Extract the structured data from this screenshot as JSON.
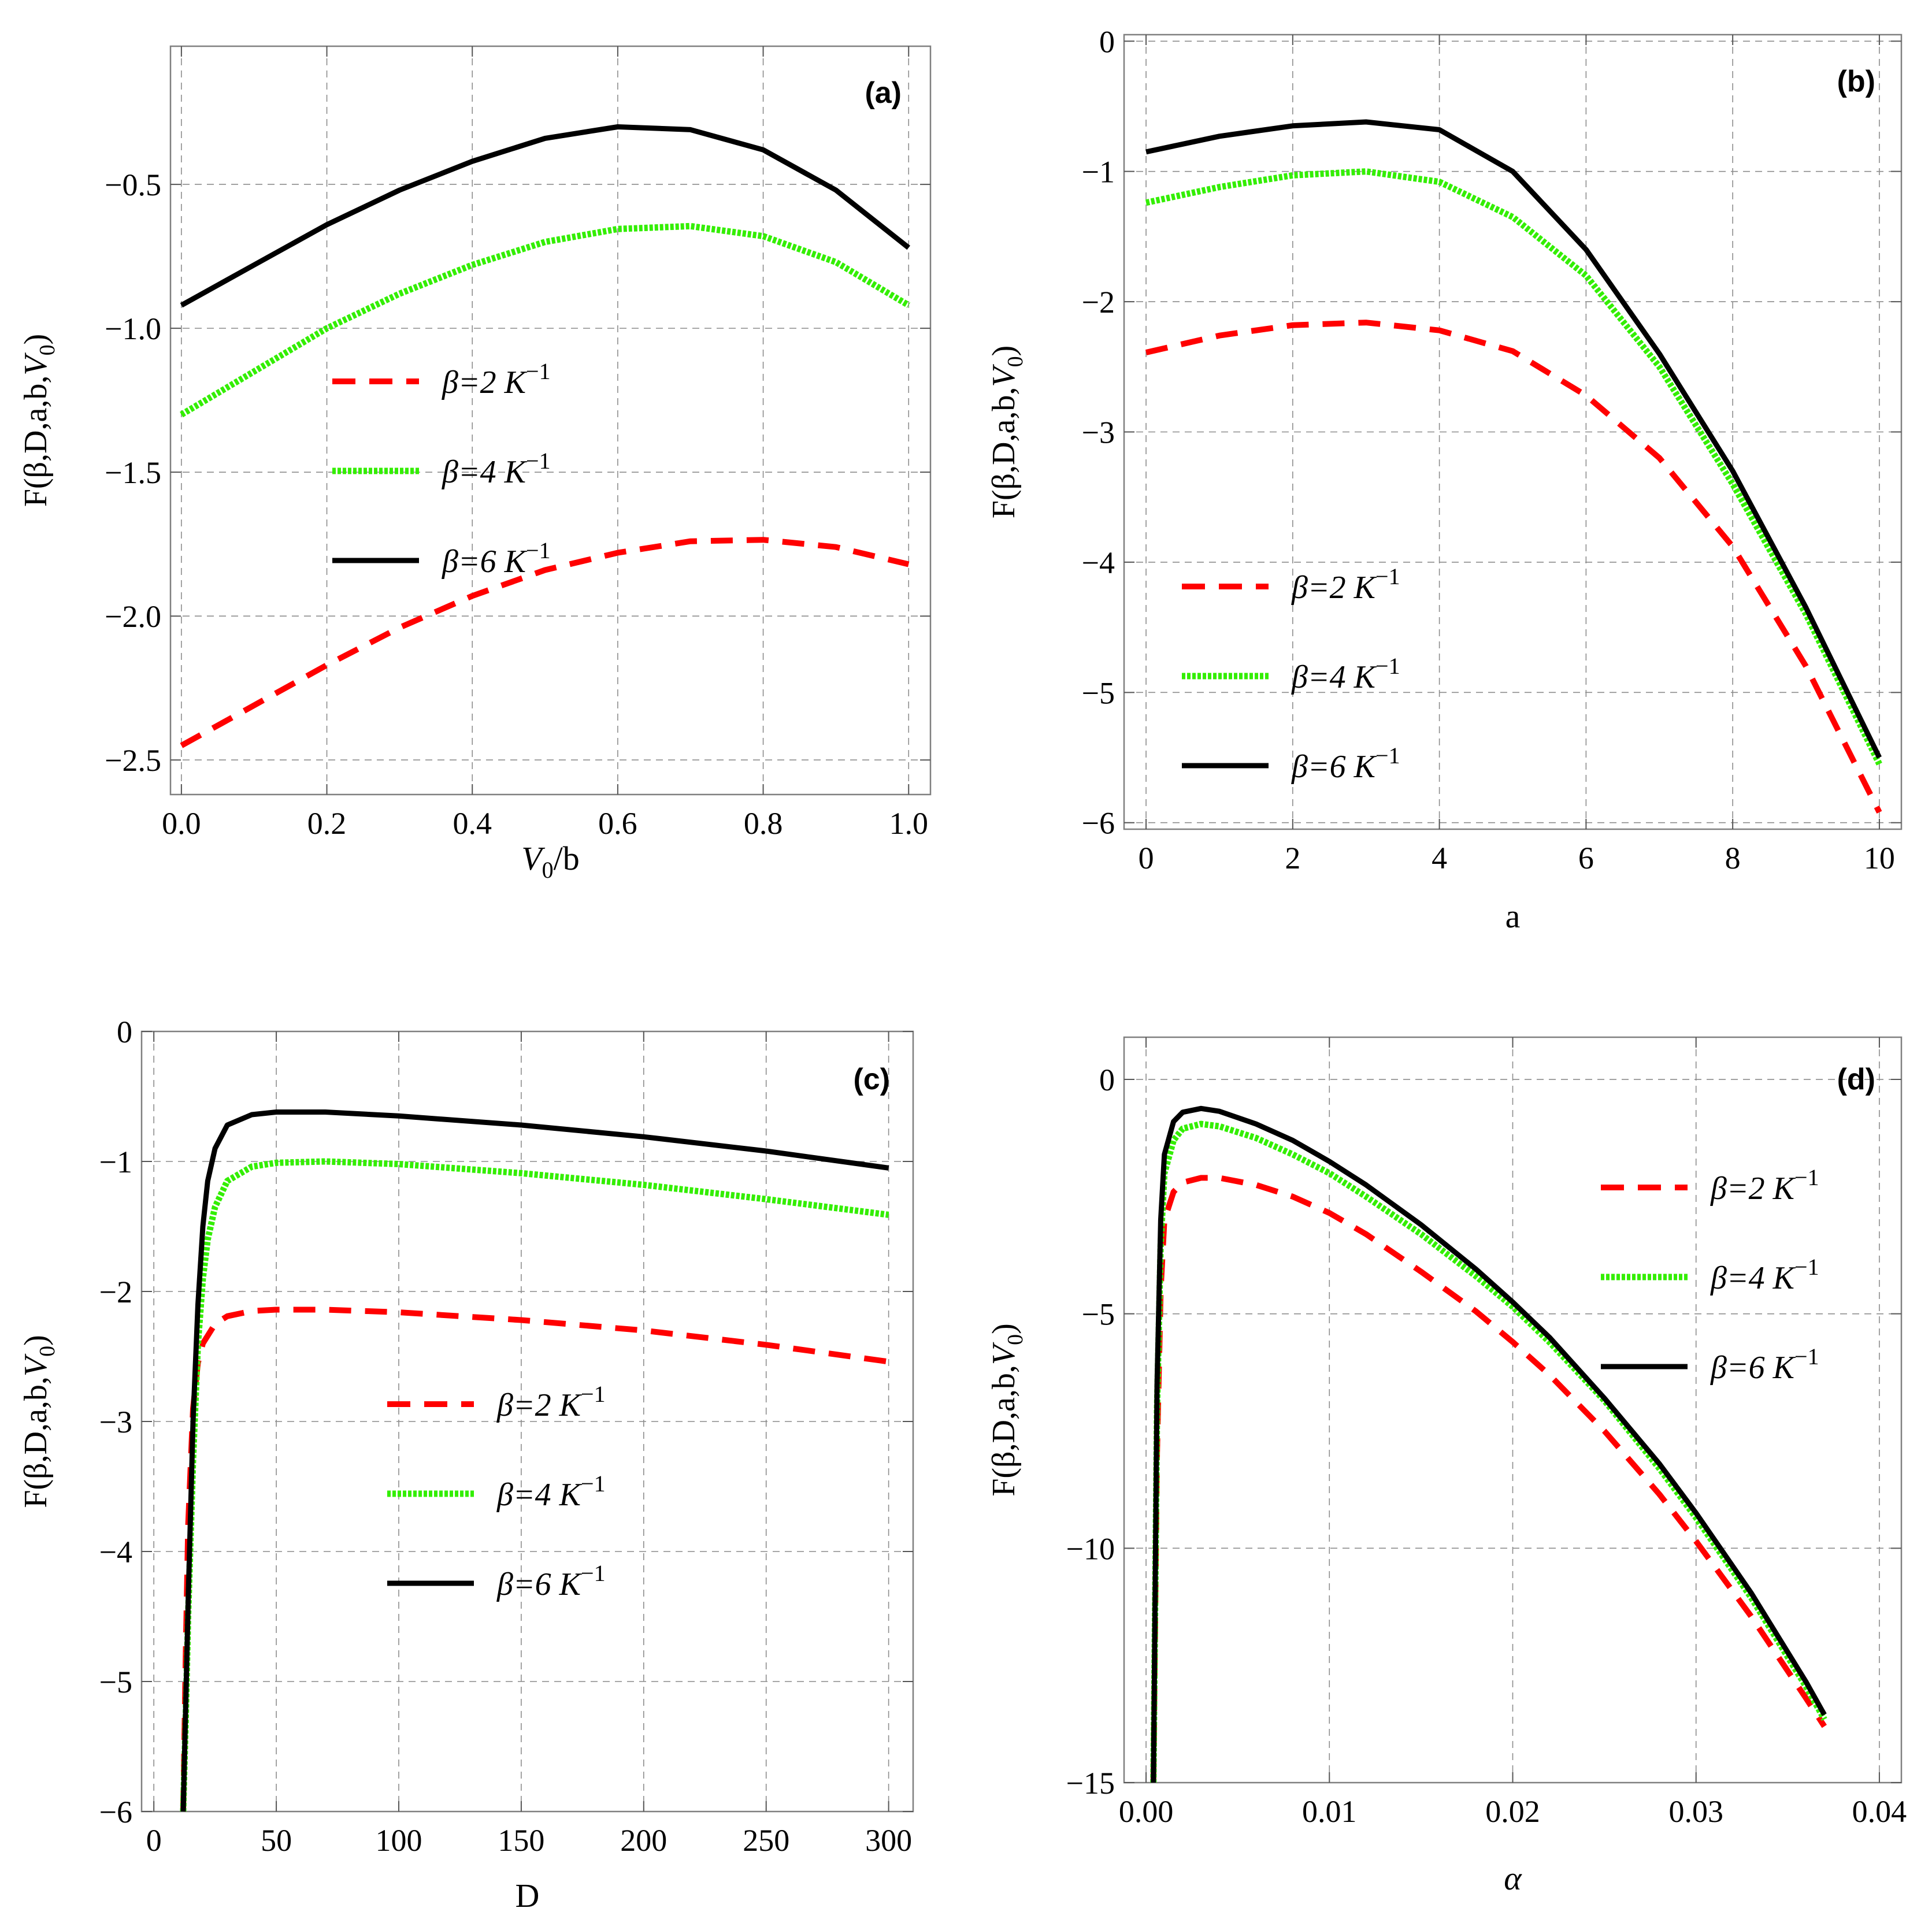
{
  "chart_data": [
    {
      "panel": "(a)",
      "type": "line",
      "xlabel": "V0/b",
      "ylabel": "F(β,D,a,b,V0)",
      "xlim": [
        -0.015,
        1.03
      ],
      "ylim": [
        -2.62,
        -0.02
      ],
      "xticks": [
        0.0,
        0.2,
        0.4,
        0.6,
        0.8,
        1.0
      ],
      "xtick_labels": [
        "0.0",
        "0.2",
        "0.4",
        "0.6",
        "0.8",
        "1.0"
      ],
      "yticks": [
        -2.5,
        -2.0,
        -1.5,
        -1.0,
        -0.5
      ],
      "ytick_labels": [
        "−2.5",
        "−2.0",
        "−1.5",
        "−1.0",
        "−0.5"
      ],
      "legend": {
        "placement": "center-left"
      },
      "series": [
        {
          "name": "β=2 K⁻¹",
          "color": "#ff0000",
          "style": "dashed",
          "x": [
            0.0,
            0.1,
            0.2,
            0.3,
            0.4,
            0.5,
            0.6,
            0.7,
            0.8,
            0.9,
            1.0
          ],
          "y": [
            -2.45,
            -2.31,
            -2.17,
            -2.04,
            -1.93,
            -1.84,
            -1.78,
            -1.74,
            -1.735,
            -1.76,
            -1.82
          ]
        },
        {
          "name": "β=4 K⁻¹",
          "color": "#33ee00",
          "style": "dotted",
          "x": [
            0.0,
            0.1,
            0.2,
            0.3,
            0.4,
            0.5,
            0.6,
            0.7,
            0.8,
            0.9,
            1.0
          ],
          "y": [
            -1.3,
            -1.15,
            -1.0,
            -0.88,
            -0.78,
            -0.7,
            -0.655,
            -0.645,
            -0.68,
            -0.77,
            -0.92
          ]
        },
        {
          "name": "β=6 K⁻¹",
          "color": "#000000",
          "style": "solid",
          "x": [
            0.0,
            0.1,
            0.2,
            0.3,
            0.4,
            0.5,
            0.6,
            0.7,
            0.8,
            0.9,
            1.0
          ],
          "y": [
            -0.92,
            -0.78,
            -0.64,
            -0.52,
            -0.42,
            -0.34,
            -0.3,
            -0.31,
            -0.38,
            -0.52,
            -0.72
          ]
        }
      ]
    },
    {
      "panel": "(b)",
      "type": "line",
      "xlabel": "a",
      "ylabel": "F(β,D,a,b,V0)",
      "xlim": [
        -0.3,
        10.3
      ],
      "ylim": [
        -6.05,
        0.05
      ],
      "xticks": [
        0,
        2,
        4,
        6,
        8,
        10
      ],
      "xtick_labels": [
        "0",
        "2",
        "4",
        "6",
        "8",
        "10"
      ],
      "yticks": [
        0,
        -1,
        -2,
        -3,
        -4,
        -5,
        -6
      ],
      "ytick_labels": [
        "0",
        "−1",
        "−2",
        "−3",
        "−4",
        "−5",
        "−6"
      ],
      "legend": {
        "placement": "bottom-left"
      },
      "series": [
        {
          "name": "β=2 K⁻¹",
          "color": "#ff0000",
          "style": "dashed",
          "x": [
            0,
            1,
            2,
            3,
            4,
            5,
            6,
            7,
            8,
            9,
            10
          ],
          "y": [
            -2.39,
            -2.26,
            -2.18,
            -2.16,
            -2.22,
            -2.38,
            -2.72,
            -3.2,
            -3.88,
            -4.8,
            -5.92
          ]
        },
        {
          "name": "β=4 K⁻¹",
          "color": "#33ee00",
          "style": "dotted",
          "x": [
            0,
            1,
            2,
            3,
            4,
            5,
            6,
            7,
            8,
            9,
            10
          ],
          "y": [
            -1.24,
            -1.12,
            -1.03,
            -1.0,
            -1.08,
            -1.35,
            -1.8,
            -2.5,
            -3.4,
            -4.4,
            -5.55
          ]
        },
        {
          "name": "β=6 K⁻¹",
          "color": "#000000",
          "style": "solid",
          "x": [
            0,
            1,
            2,
            3,
            4,
            5,
            6,
            7,
            8,
            9,
            10
          ],
          "y": [
            -0.85,
            -0.73,
            -0.65,
            -0.62,
            -0.68,
            -1.0,
            -1.6,
            -2.4,
            -3.3,
            -4.35,
            -5.5
          ]
        }
      ]
    },
    {
      "panel": "(c)",
      "type": "line",
      "xlabel": "D",
      "ylabel": "F(β,D,a,b,V0)",
      "xlim": [
        -5,
        310
      ],
      "ylim": [
        -6.0,
        0.0
      ],
      "xticks": [
        0,
        50,
        100,
        150,
        200,
        250,
        300
      ],
      "xtick_labels": [
        "0",
        "50",
        "100",
        "150",
        "200",
        "250",
        "300"
      ],
      "yticks": [
        0,
        -1,
        -2,
        -3,
        -4,
        -5,
        -6
      ],
      "ytick_labels": [
        "0",
        "−1",
        "−2",
        "−3",
        "−4",
        "−5",
        "−6"
      ],
      "legend": {
        "placement": "bottom-center"
      },
      "series": [
        {
          "name": "β=2 K⁻¹",
          "color": "#ff0000",
          "style": "dashed",
          "x": [
            12,
            13,
            14,
            16,
            18,
            20,
            25,
            30,
            40,
            50,
            70,
            100,
            150,
            200,
            250,
            300
          ],
          "y": [
            -6.0,
            -4.8,
            -3.8,
            -2.9,
            -2.55,
            -2.4,
            -2.25,
            -2.19,
            -2.15,
            -2.14,
            -2.14,
            -2.16,
            -2.22,
            -2.3,
            -2.41,
            -2.54
          ]
        },
        {
          "name": "β=4 K⁻¹",
          "color": "#33ee00",
          "style": "dotted",
          "x": [
            12,
            13,
            14,
            16,
            18,
            20,
            22,
            25,
            30,
            40,
            50,
            70,
            100,
            150,
            200,
            250,
            300
          ],
          "y": [
            -6.0,
            -5.3,
            -4.5,
            -3.3,
            -2.4,
            -1.9,
            -1.6,
            -1.35,
            -1.15,
            -1.04,
            -1.01,
            -1.0,
            -1.02,
            -1.09,
            -1.18,
            -1.29,
            -1.41
          ]
        },
        {
          "name": "β=6 K⁻¹",
          "color": "#000000",
          "style": "solid",
          "x": [
            12,
            13,
            14,
            16,
            18,
            20,
            22,
            25,
            30,
            40,
            50,
            70,
            100,
            150,
            200,
            250,
            300
          ],
          "y": [
            -6.0,
            -5.2,
            -4.4,
            -3.0,
            -2.1,
            -1.5,
            -1.15,
            -0.9,
            -0.72,
            -0.64,
            -0.62,
            -0.62,
            -0.65,
            -0.72,
            -0.81,
            -0.92,
            -1.05
          ]
        }
      ]
    },
    {
      "panel": "(d)",
      "type": "line",
      "xlabel": "α",
      "ylabel": "F(β,D,a,b,V0)",
      "xlim": [
        -0.0012,
        0.0412
      ],
      "ylim": [
        -15.0,
        0.9
      ],
      "xticks": [
        0.0,
        0.01,
        0.02,
        0.03,
        0.04
      ],
      "xtick_labels": [
        "0.00",
        "0.01",
        "0.02",
        "0.03",
        "0.04"
      ],
      "yticks": [
        0,
        -5,
        -10,
        -15
      ],
      "ytick_labels": [
        "0",
        "−5",
        "−10",
        "−15"
      ],
      "legend": {
        "placement": "top-right"
      },
      "series": [
        {
          "name": "β=2 K⁻¹",
          "color": "#ff0000",
          "style": "dashed",
          "x": [
            0.0004,
            0.0006,
            0.0008,
            0.001,
            0.0015,
            0.002,
            0.003,
            0.004,
            0.006,
            0.008,
            0.01,
            0.012,
            0.015,
            0.018,
            0.02,
            0.022,
            0.025,
            0.028,
            0.03,
            0.033,
            0.036,
            0.037
          ],
          "y": [
            -15.0,
            -8.0,
            -4.5,
            -3.0,
            -2.4,
            -2.2,
            -2.1,
            -2.1,
            -2.25,
            -2.5,
            -2.85,
            -3.3,
            -4.1,
            -4.95,
            -5.6,
            -6.3,
            -7.5,
            -8.85,
            -9.85,
            -11.45,
            -13.2,
            -13.8
          ]
        },
        {
          "name": "β=4 K⁻¹",
          "color": "#33ee00",
          "style": "dotted",
          "x": [
            0.0004,
            0.0006,
            0.0008,
            0.001,
            0.0015,
            0.002,
            0.003,
            0.004,
            0.006,
            0.008,
            0.01,
            0.012,
            0.015,
            0.018,
            0.02,
            0.022,
            0.025,
            0.028,
            0.03,
            0.033,
            0.036,
            0.037
          ],
          "y": [
            -15.0,
            -7.0,
            -3.5,
            -2.0,
            -1.3,
            -1.05,
            -0.95,
            -1.0,
            -1.25,
            -1.6,
            -2.0,
            -2.5,
            -3.3,
            -4.2,
            -4.85,
            -5.6,
            -6.85,
            -8.3,
            -9.35,
            -11.05,
            -12.95,
            -13.65
          ]
        },
        {
          "name": "β=6 K⁻¹",
          "color": "#000000",
          "style": "solid",
          "x": [
            0.0004,
            0.0006,
            0.0008,
            0.001,
            0.0015,
            0.002,
            0.003,
            0.004,
            0.006,
            0.008,
            0.01,
            0.012,
            0.015,
            0.018,
            0.02,
            0.022,
            0.025,
            0.028,
            0.03,
            0.033,
            0.036,
            0.037
          ],
          "y": [
            -15.0,
            -6.5,
            -3.0,
            -1.6,
            -0.9,
            -0.7,
            -0.62,
            -0.68,
            -0.95,
            -1.3,
            -1.75,
            -2.25,
            -3.1,
            -4.05,
            -4.75,
            -5.5,
            -6.8,
            -8.2,
            -9.25,
            -10.95,
            -12.85,
            -13.55
          ]
        }
      ]
    }
  ]
}
